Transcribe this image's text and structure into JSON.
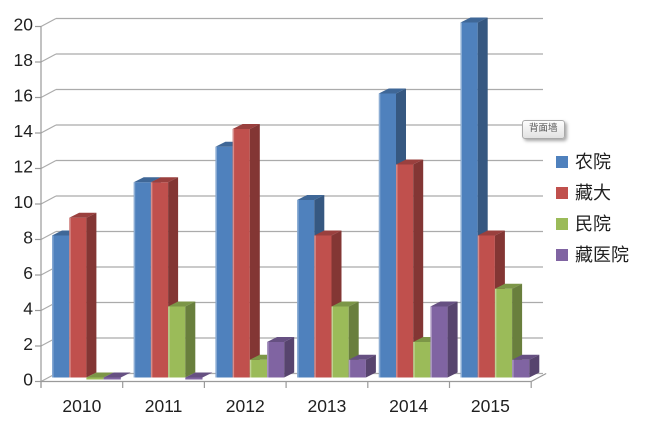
{
  "tooltip": {
    "label": "背面墙"
  },
  "colors": {
    "gridline": "#ababab",
    "axis": "#9a9a9a",
    "text": "#1f1f1f"
  },
  "chart_data": {
    "type": "bar",
    "subtype": "3d-clustered",
    "title": "",
    "xlabel": "",
    "ylabel": "",
    "categories": [
      "2010",
      "2011",
      "2012",
      "2013",
      "2014",
      "2015"
    ],
    "series": [
      {
        "name": "农院",
        "color": "#4F81BD",
        "values": [
          8,
          11,
          13,
          10,
          16,
          20
        ]
      },
      {
        "name": "藏大",
        "color": "#C0504D",
        "values": [
          9,
          11,
          14,
          8,
          12,
          8
        ]
      },
      {
        "name": "民院",
        "color": "#9BBB59",
        "values": [
          0,
          4,
          1,
          4,
          2,
          5
        ]
      },
      {
        "name": "藏医院",
        "color": "#8064A2",
        "values": [
          0,
          0,
          2,
          1,
          4,
          1
        ]
      }
    ],
    "ylim": [
      0,
      20
    ],
    "ytick_step": 2,
    "ytick_labels": [
      "0",
      "2",
      "4",
      "6",
      "8",
      "10",
      "12",
      "14",
      "16",
      "18",
      "20"
    ],
    "grid": true,
    "legend_position": "right"
  }
}
